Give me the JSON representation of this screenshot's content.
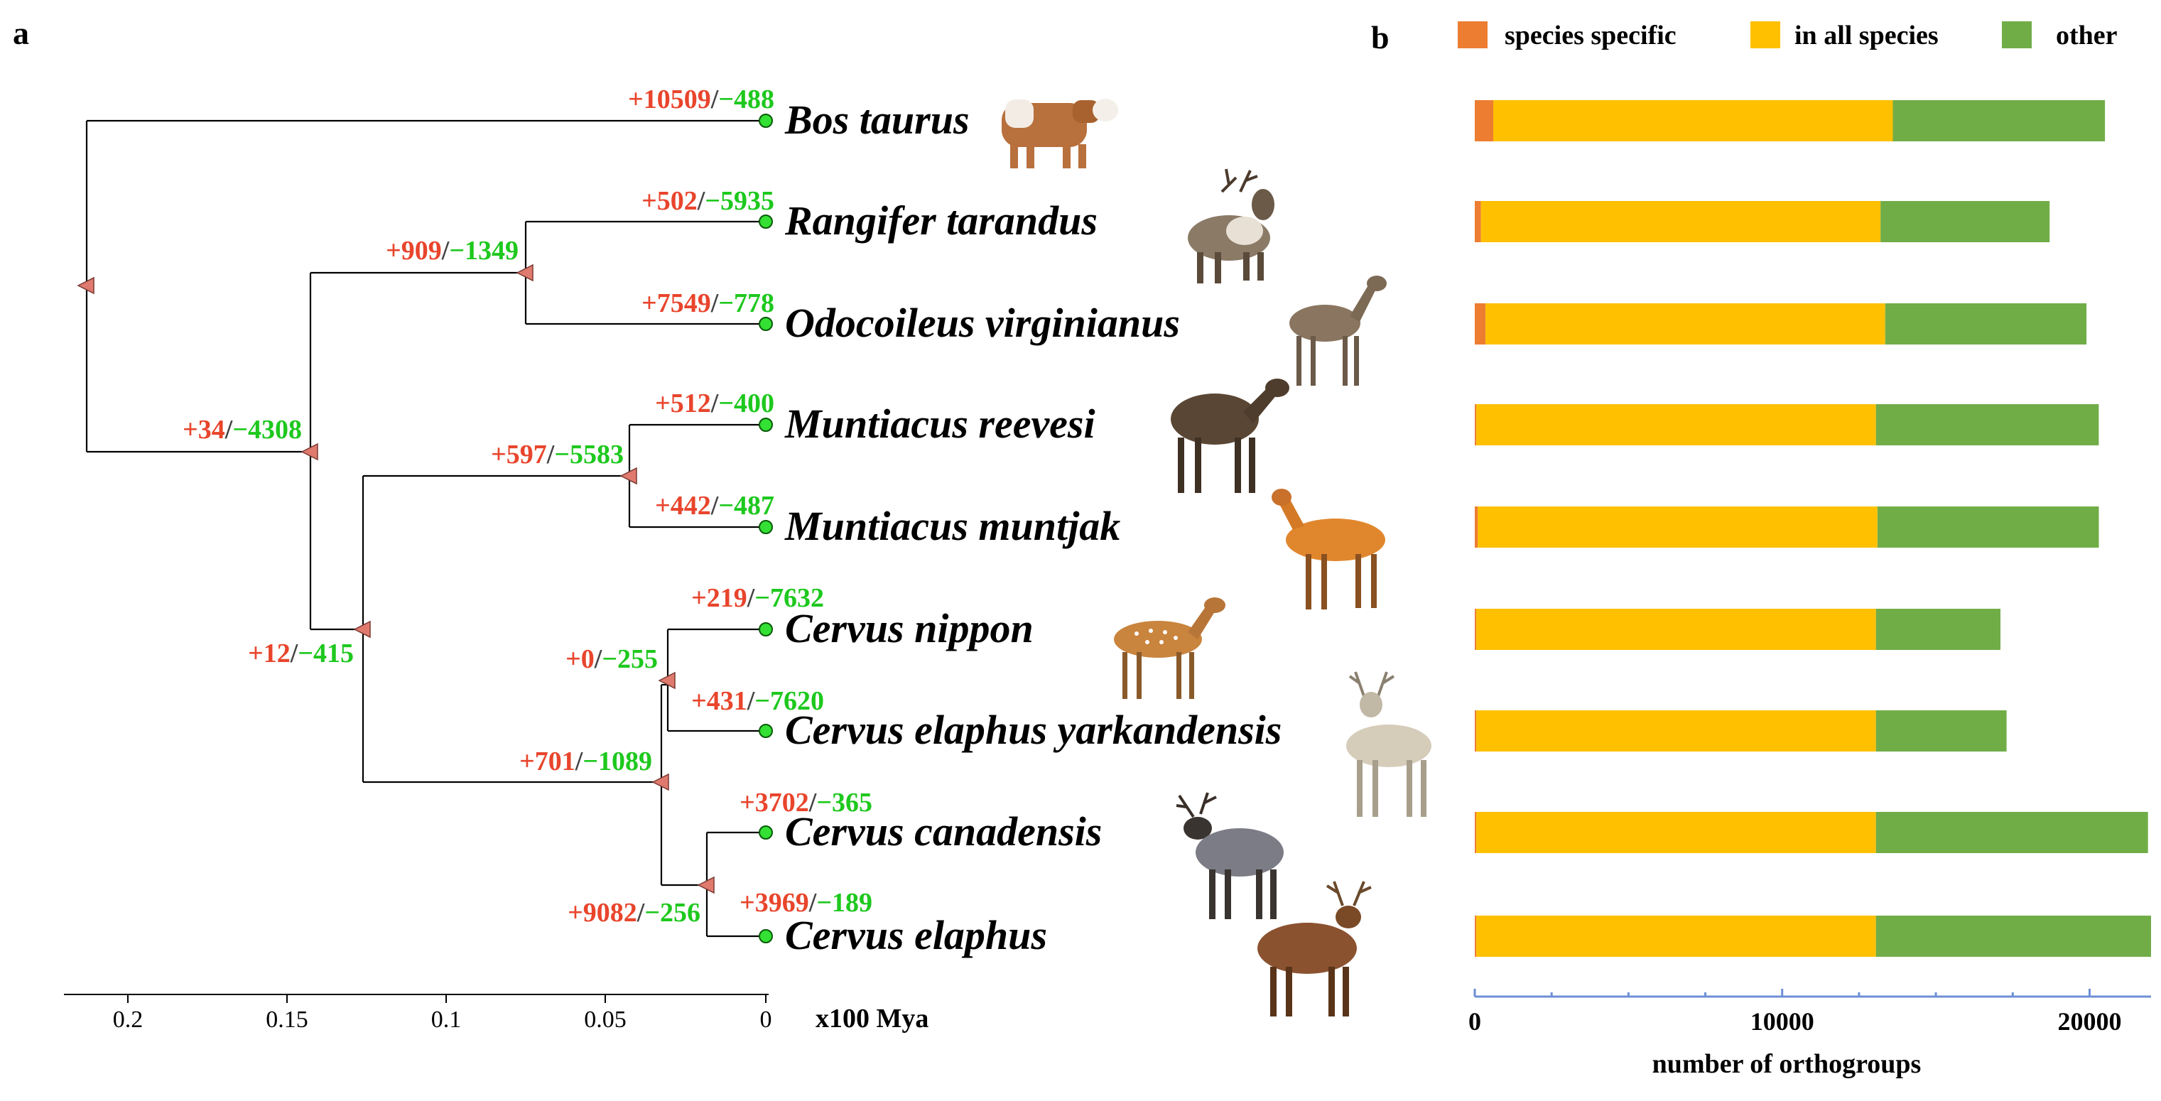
{
  "panel_a": {
    "letter": "a",
    "axis_ticks": [
      "0.2",
      "0.15",
      "0.1",
      "0.05",
      "0"
    ],
    "axis_label": "x100 Mya",
    "species": [
      {
        "name": "Bos taurus",
        "gain": "+10509",
        "loss": "−488",
        "animal": "cow-image"
      },
      {
        "name": "Rangifer tarandus",
        "gain": "+502",
        "loss": "−5935",
        "animal": "reindeer-image"
      },
      {
        "name": "Odocoileus virginianus",
        "gain": "+7549",
        "loss": "−778",
        "animal": "white-tailed-deer-image"
      },
      {
        "name": "Muntiacus reevesi",
        "gain": "+512",
        "loss": "−400",
        "animal": "reeves-muntjac-image"
      },
      {
        "name": "Muntiacus muntjak",
        "gain": "+442",
        "loss": "−487",
        "animal": "indian-muntjac-image"
      },
      {
        "name": "Cervus nippon",
        "gain": "+219",
        "loss": "−7632",
        "animal": "sika-deer-image"
      },
      {
        "name": "Cervus elaphus yarkandensis",
        "gain": "+431",
        "loss": "−7620",
        "animal": "yarkand-deer-image"
      },
      {
        "name": "Cervus canadensis",
        "gain": "+3702",
        "loss": "−365",
        "animal": "wapiti-image"
      },
      {
        "name": "Cervus elaphus",
        "gain": "+3969",
        "loss": "−189",
        "animal": "red-deer-image"
      }
    ],
    "internal_nodes": [
      {
        "id": "rangifer-odocoileus",
        "gain": "+909",
        "loss": "−1349"
      },
      {
        "id": "cervidae",
        "gain": "+34",
        "loss": "−4308"
      },
      {
        "id": "muntiacus",
        "gain": "+597",
        "loss": "−5583"
      },
      {
        "id": "muntiacus-cervus",
        "gain": "+12",
        "loss": "−415"
      },
      {
        "id": "nippon-yarkandensis",
        "gain": "+0",
        "loss": "−255"
      },
      {
        "id": "cervus",
        "gain": "+701",
        "loss": "−1089"
      },
      {
        "id": "canadensis-elaphus",
        "gain": "+9082",
        "loss": "−256"
      }
    ],
    "colors": {
      "gain": "#e8452c",
      "loss": "#1ec81e",
      "tip_node": "#33e033",
      "internal_node": "#e07a6e"
    }
  },
  "chart_data": {
    "type": "bar",
    "orientation": "horizontal",
    "stacked": true,
    "panel_letter": "b",
    "categories": [
      "Bos taurus",
      "Rangifer tarandus",
      "Odocoileus virginianus",
      "Muntiacus reevesi",
      "Muntiacus muntjak",
      "Cervus nippon",
      "Cervus elaphus yarkandensis",
      "Cervus canadensis",
      "Cervus elaphus"
    ],
    "series": [
      {
        "name": "species specific",
        "color": "#ed7d31",
        "values": [
          600,
          200,
          350,
          50,
          100,
          50,
          50,
          50,
          50
        ]
      },
      {
        "name": "in all species",
        "color": "#ffc000",
        "values": [
          13000,
          13000,
          13000,
          13000,
          13000,
          13000,
          13000,
          13000,
          13000
        ]
      },
      {
        "name": "other",
        "color": "#70ad47",
        "values": [
          6900,
          5500,
          6550,
          7250,
          7200,
          4050,
          4250,
          8850,
          8950
        ]
      }
    ],
    "xlabel": "number of orthogroups",
    "xticks": [
      "0",
      "10000",
      "20000"
    ],
    "xlim": [
      0,
      22000
    ],
    "legend_position": "top",
    "axis_color": "#6d8fd6"
  }
}
